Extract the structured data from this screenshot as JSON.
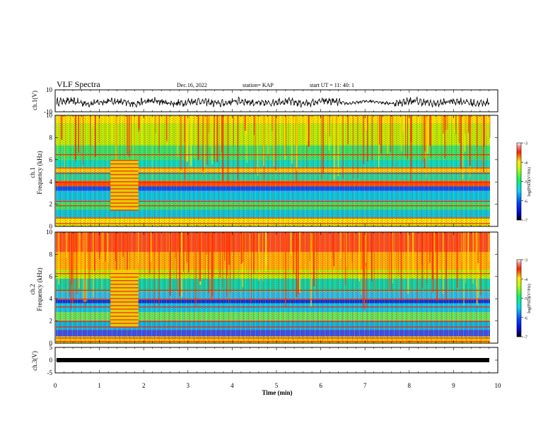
{
  "header": {
    "title": "VLF Spectra",
    "date": "Dec.16, 2022",
    "station": "station= KAP",
    "start": "start  UT  =  11: 40: 1"
  },
  "chart_data": [
    {
      "type": "line",
      "panel": "ch1-waveform",
      "ylabel": "ch.1(V)",
      "ylim": [
        -10,
        10
      ],
      "y_ticks": [
        "10",
        "-10"
      ],
      "xlim": [
        0,
        10
      ]
    },
    {
      "type": "heatmap",
      "panel": "ch1-spectrogram",
      "ylabel_line1": "ch.1",
      "ylabel_line2": "Frequency  (kHz)",
      "ylim": [
        0,
        10
      ],
      "y_ticks": [
        "0",
        "2",
        "4",
        "6",
        "8",
        "10"
      ],
      "xlim": [
        0,
        10
      ],
      "colorbar": {
        "label": "log(PSD)(V²/Hz)",
        "range": [
          -7,
          -3
        ],
        "ticks": [
          "-3",
          "-4",
          "-5",
          "-6",
          "-7"
        ]
      }
    },
    {
      "type": "heatmap",
      "panel": "ch2-spectrogram",
      "ylabel_line1": "ch.2",
      "ylabel_line2": "Frequency  (kHz)",
      "ylim": [
        0,
        10
      ],
      "y_ticks": [
        "0",
        "2",
        "4",
        "6",
        "8",
        "10"
      ],
      "xlim": [
        0,
        10
      ],
      "colorbar": {
        "label": "log(PSD)(V²/Hz)",
        "range": [
          -7,
          -3
        ],
        "ticks": [
          "-3",
          "-4",
          "-5",
          "-6",
          "-7"
        ]
      }
    },
    {
      "type": "line",
      "panel": "ch3-waveform",
      "ylabel": "ch.3(V)",
      "ylim": [
        -5,
        5
      ],
      "y_ticks": [
        "5",
        "0",
        "-5"
      ],
      "xlim": [
        0,
        10
      ],
      "xlabel": "Time  (min)",
      "x_ticks": [
        "0",
        "1",
        "2",
        "3",
        "4",
        "5",
        "6",
        "7",
        "8",
        "9",
        "10"
      ]
    }
  ]
}
